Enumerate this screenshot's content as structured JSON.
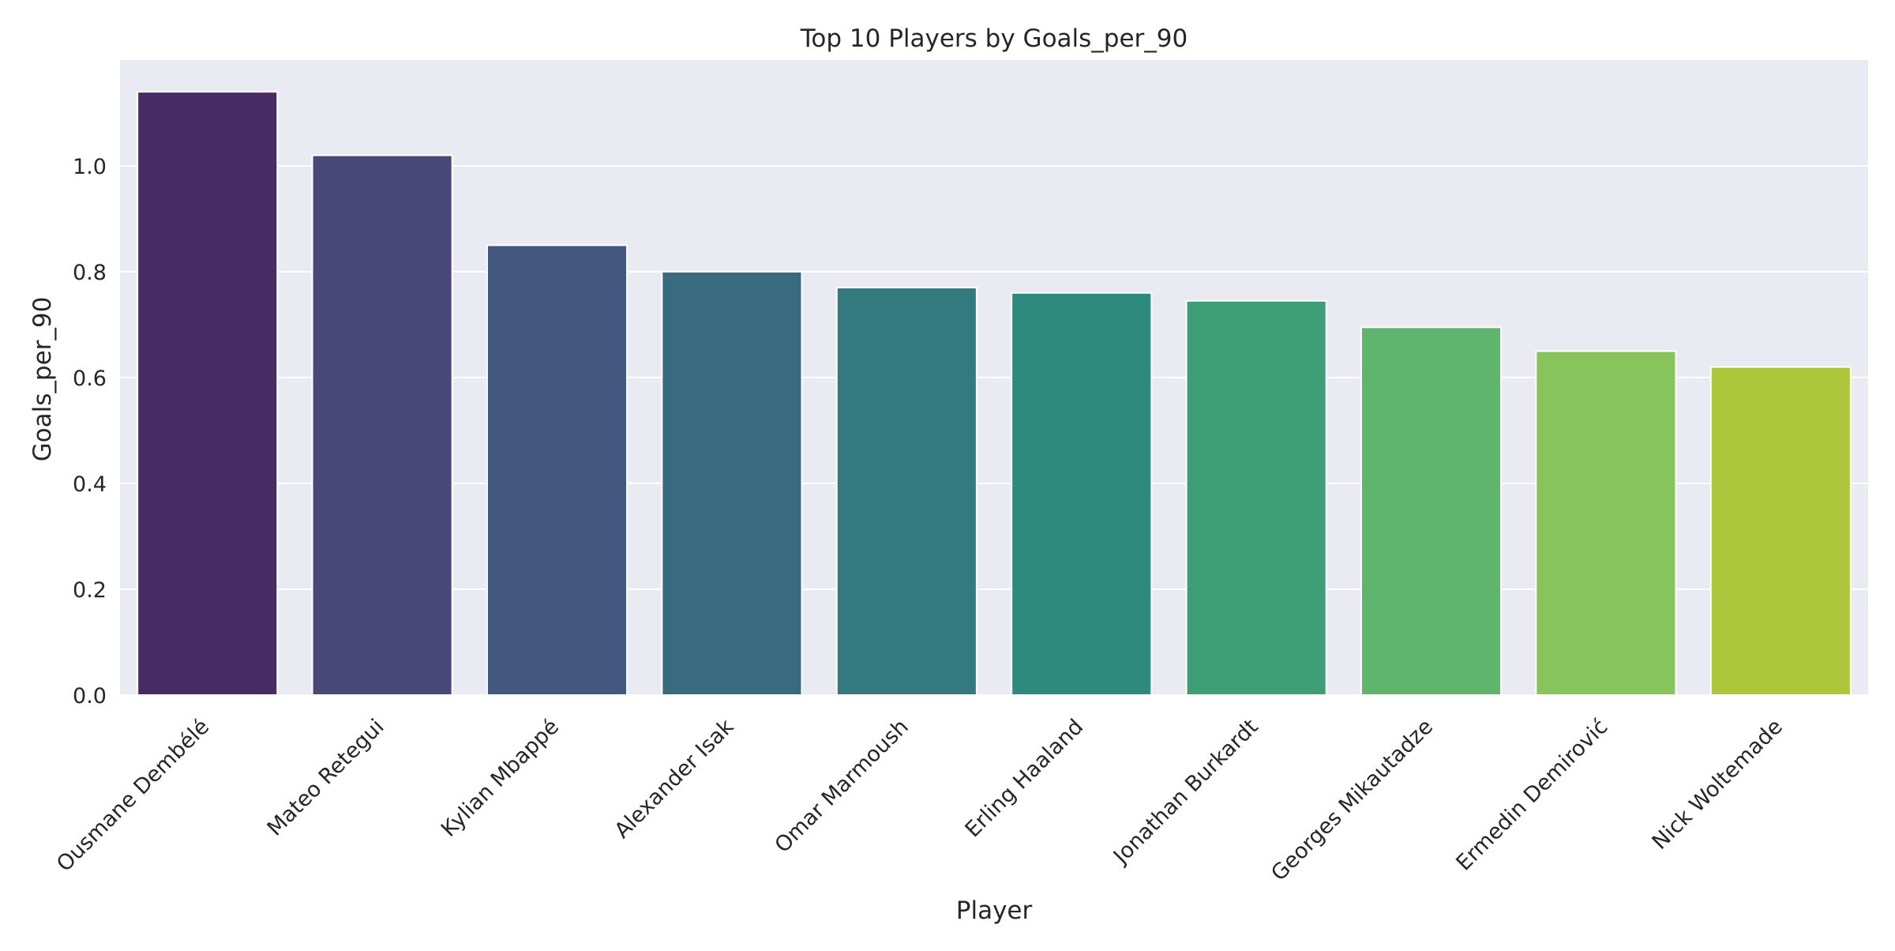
{
  "chart_data": {
    "type": "bar",
    "title": "Top 10 Players by Goals_per_90",
    "xlabel": "Player",
    "ylabel": "Goals_per_90",
    "categories": [
      "Ousmane Dembélé",
      "Mateo Retegui",
      "Kylian Mbappé",
      "Alexander Isak",
      "Omar Marmoush",
      "Erling Haaland",
      "Jonathan Burkardt",
      "Georges Mikautadze",
      "Ermedin Demirović",
      "Nick Woltemade"
    ],
    "values": [
      1.14,
      1.02,
      0.85,
      0.8,
      0.77,
      0.76,
      0.745,
      0.695,
      0.65,
      0.62
    ],
    "colors": [
      "#482b64",
      "#4a4879",
      "#42587f",
      "#386a80",
      "#327a80",
      "#2e8a7d",
      "#3e9e76",
      "#5fb46e",
      "#88c45c",
      "#aec63b"
    ],
    "ylim": [
      0,
      1.2
    ],
    "yticks": [
      "0.0",
      "0.2",
      "0.4",
      "0.6",
      "0.8",
      "1.0"
    ],
    "grid": true,
    "legend": "none",
    "background": "#eaeaf2",
    "grid_color": "#ffffff"
  }
}
